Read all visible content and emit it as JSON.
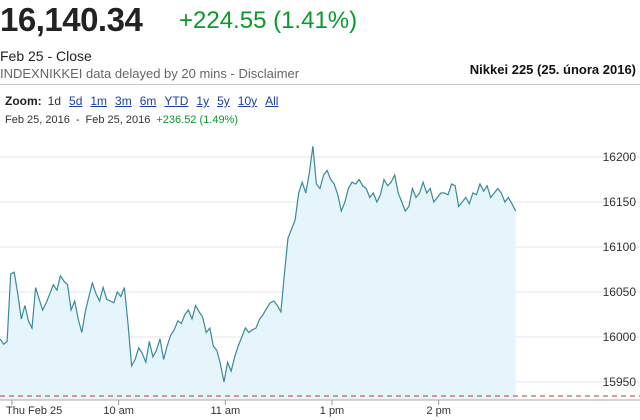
{
  "header": {
    "price": "16,140.34",
    "change": "+224.55 (1.41%)",
    "close_label": "Feb 25 - Close",
    "delay_label": "INDEXNIKKEI data delayed by 20 mins - Disclaimer",
    "caption": "Nikkei 225 (25. února 2016)"
  },
  "zoom": {
    "label": "Zoom:",
    "options": [
      "1d",
      "5d",
      "1m",
      "3m",
      "6m",
      "YTD",
      "1y",
      "5y",
      "10y",
      "All"
    ]
  },
  "range": {
    "start": "Feb 25, 2016",
    "separator": "-",
    "end": "Feb 25, 2016",
    "change": "+236.52 (1.49%)"
  },
  "colors": {
    "line": "#3a8a9a",
    "fill": "#e6f4fb",
    "positive": "#0a9a2a",
    "link": "#1a3faa"
  },
  "chart_data": {
    "type": "area",
    "xlim": [
      0,
      360
    ],
    "ylim": [
      15930,
      16230
    ],
    "x_ticks": [
      {
        "label": "Thu Feb 25",
        "value": 0
      },
      {
        "label": "10 am",
        "value": 60
      },
      {
        "label": "11 am",
        "value": 120
      },
      {
        "label": "1 pm",
        "value": 180
      },
      {
        "label": "2 pm",
        "value": 240
      }
    ],
    "y_ticks": [
      15950,
      16000,
      16050,
      16100,
      16150,
      16200
    ],
    "grid": true,
    "x": [
      0,
      2,
      4,
      6,
      8,
      10,
      12,
      14,
      16,
      18,
      20,
      22,
      24,
      26,
      28,
      30,
      32,
      34,
      36,
      38,
      40,
      42,
      44,
      46,
      48,
      50,
      52,
      54,
      56,
      58,
      60,
      62,
      64,
      66,
      68,
      70,
      72,
      74,
      76,
      78,
      80,
      82,
      84,
      86,
      88,
      90,
      92,
      94,
      96,
      98,
      100,
      102,
      104,
      106,
      108,
      110,
      112,
      114,
      116,
      118,
      120,
      122,
      124,
      126,
      128,
      130,
      132,
      134,
      136,
      138,
      140,
      142,
      144,
      146,
      148,
      150,
      152,
      154,
      156,
      158,
      160,
      162,
      164,
      166,
      168,
      170,
      172,
      174,
      176,
      178,
      180,
      182,
      184,
      186,
      188,
      190,
      192,
      194,
      196,
      198,
      200,
      202,
      204,
      206,
      208,
      210,
      212,
      214,
      216,
      218,
      220,
      222,
      224,
      226,
      228,
      230,
      232,
      234,
      236,
      238,
      240,
      242,
      244,
      246,
      248,
      250,
      252,
      254,
      256,
      258,
      260,
      262,
      264,
      266,
      268,
      270,
      272,
      274,
      276,
      278,
      280,
      282,
      284,
      286,
      288,
      290
    ],
    "values": [
      15998,
      15992,
      15995,
      16070,
      16072,
      16048,
      16020,
      16035,
      16018,
      16010,
      16055,
      16042,
      16030,
      16038,
      16048,
      16058,
      16052,
      16068,
      16062,
      16058,
      16030,
      16040,
      16020,
      16005,
      16028,
      16045,
      16060,
      16048,
      16040,
      16055,
      16042,
      16040,
      16038,
      16050,
      16045,
      16055,
      16015,
      15968,
      15975,
      15988,
      15982,
      15972,
      15995,
      15978,
      15985,
      15998,
      15975,
      15990,
      16002,
      16008,
      16018,
      16015,
      16025,
      16030,
      16020,
      16035,
      16028,
      16022,
      16005,
      16010,
      15990,
      15985,
      15970,
      15950,
      15972,
      15962,
      15978,
      15990,
      16000,
      16010,
      16005,
      16008,
      16010,
      16020,
      16025,
      16032,
      16038,
      16040,
      16035,
      16028,
      16070,
      16110,
      16120,
      16130,
      16160,
      16172,
      16160,
      16182,
      16212,
      16170,
      16165,
      16180,
      16185,
      16175,
      16170,
      16158,
      16140,
      16150,
      16165,
      16172,
      16170,
      16175,
      16168,
      16165,
      16155,
      16160,
      16150,
      16158,
      16175,
      16168,
      16172,
      16180,
      16160,
      16150,
      16140,
      16145,
      16165,
      16155,
      16160,
      16172,
      16160,
      16165,
      16150,
      16155,
      16160,
      16160,
      16158,
      16170,
      16168,
      16145,
      16150,
      16155,
      16148,
      16160,
      16158,
      16170,
      16162,
      16168,
      16155,
      16160,
      16165,
      16160,
      16150,
      16155,
      16148,
      16140
    ]
  }
}
